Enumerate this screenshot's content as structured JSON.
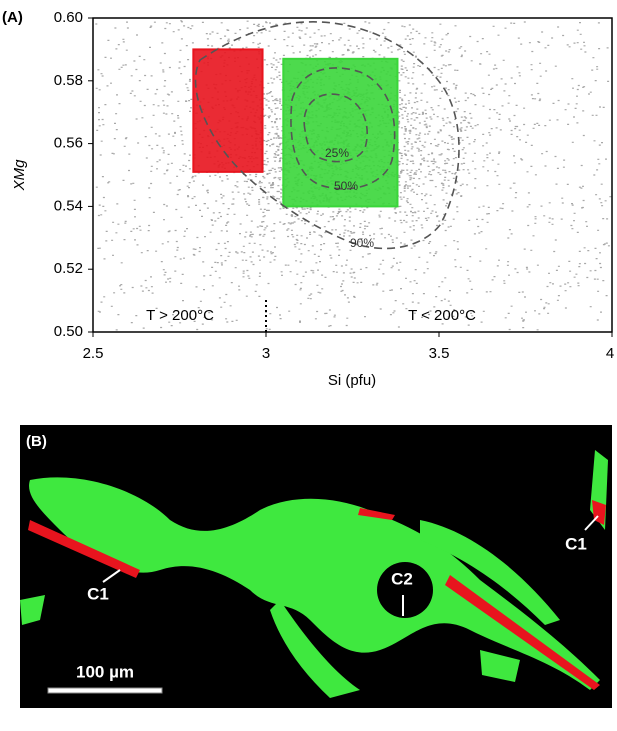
{
  "chart_data": {
    "type": "scatter",
    "panel_label": "(A)",
    "xlabel": "Si (pfu)",
    "ylabel": "XMg",
    "xlim": [
      2.5,
      4
    ],
    "ylim": [
      0.5,
      0.6
    ],
    "xticks": [
      2.5,
      3,
      3.5,
      4
    ],
    "yticks": [
      {
        "value": 0.5,
        "label": "0.50"
      },
      {
        "value": 0.52,
        "label": "0.52"
      },
      {
        "value": 0.54,
        "label": "0.54"
      },
      {
        "value": 0.56,
        "label": "0.56"
      },
      {
        "value": 0.58,
        "label": "0.58"
      },
      {
        "value": 0.6,
        "label": "0.60"
      }
    ],
    "point_color": "#a8a8a8",
    "regions": [
      {
        "color": "#e8141e",
        "xlim": [
          2.79,
          2.99
        ],
        "ylim": [
          0.551,
          0.59
        ]
      },
      {
        "color": "#3ad63a",
        "xlim": [
          3.05,
          3.38
        ],
        "ylim": [
          0.54,
          0.587
        ]
      }
    ],
    "contours": [
      {
        "label": "25%"
      },
      {
        "label": "50%"
      },
      {
        "label": "90%"
      }
    ],
    "divider_x": 3,
    "annotations": [
      "T > 200°C",
      "T < 200°C"
    ]
  },
  "image_panel": {
    "panel_label": "(B)",
    "labels": [
      "C1",
      "C2",
      "C1"
    ],
    "scale_bar": "100 µm"
  }
}
